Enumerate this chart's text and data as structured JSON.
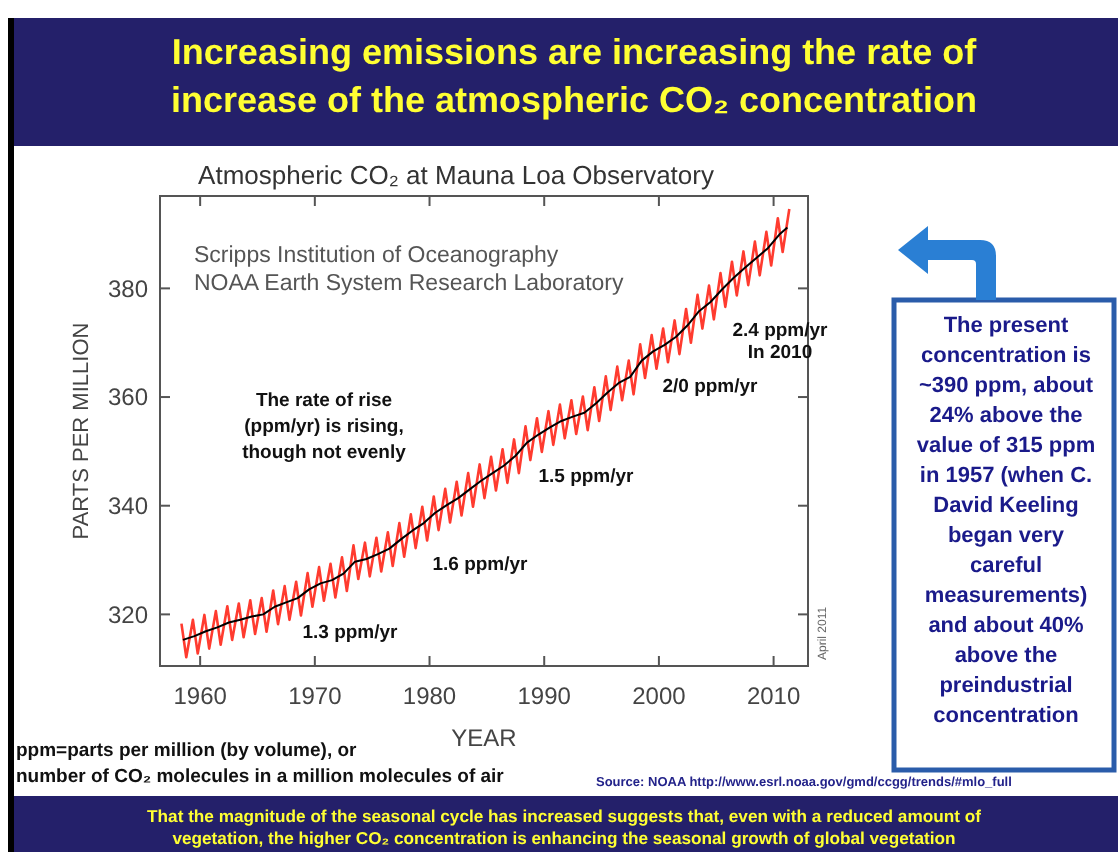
{
  "chart_data": {
    "type": "line",
    "title": "Increasing emissions are increasing the rate of increase of the atmospheric CO₂ concentration",
    "subtitle": "Atmospheric CO₂ at Mauna Loa Observatory",
    "xlabel": "YEAR",
    "ylabel": "PARTS PER MILLION",
    "xlim": [
      1956.5,
      2013
    ],
    "xticks": [
      1960,
      1970,
      1980,
      1990,
      2000,
      2010
    ],
    "ylim": [
      310.5,
      397
    ],
    "yticks": [
      320,
      340,
      360,
      380
    ],
    "grid": false,
    "series": [
      {
        "color": "#ff3b2f",
        "x": [
          1958.37,
          1958.79,
          1959.37,
          1959.79,
          1960.37,
          1960.79,
          1961.37,
          1961.79,
          1962.37,
          1962.79,
          1963.37,
          1963.79,
          1964.37,
          1964.79,
          1965.37,
          1965.79,
          1966.37,
          1966.79,
          1967.37,
          1967.79,
          1968.37,
          1968.79,
          1969.37,
          1969.79,
          1970.37,
          1970.79,
          1971.37,
          1971.79,
          1972.37,
          1972.79,
          1973.37,
          1973.79,
          1974.37,
          1974.79,
          1975.37,
          1975.79,
          1976.37,
          1976.79,
          1977.37,
          1977.79,
          1978.37,
          1978.79,
          1979.37,
          1979.79,
          1980.37,
          1980.79,
          1981.37,
          1981.79,
          1982.37,
          1982.79,
          1983.37,
          1983.79,
          1984.37,
          1984.79,
          1985.37,
          1985.79,
          1986.37,
          1986.79,
          1987.37,
          1987.79,
          1988.37,
          1988.79,
          1989.37,
          1989.79,
          1990.37,
          1990.79,
          1991.37,
          1991.79,
          1992.37,
          1992.79,
          1993.37,
          1993.79,
          1994.37,
          1994.79,
          1995.37,
          1995.79,
          1996.37,
          1996.79,
          1997.37,
          1997.79,
          1998.37,
          1998.79,
          1999.37,
          1999.79,
          2000.37,
          2000.79,
          2001.37,
          2001.79,
          2002.37,
          2002.79,
          2003.37,
          2003.79,
          2004.37,
          2004.79,
          2005.37,
          2005.79,
          2006.37,
          2006.79,
          2007.37,
          2007.79,
          2008.37,
          2008.79,
          2009.37,
          2009.79,
          2010.37,
          2010.79,
          2011.37
        ],
        "values": [
          318.3,
          312.1,
          319.0,
          312.8,
          319.9,
          313.7,
          320.6,
          314.4,
          321.5,
          315.3,
          322.0,
          315.8,
          322.6,
          316.4,
          323.0,
          316.8,
          324.4,
          318.2,
          325.2,
          319.0,
          326.0,
          319.8,
          327.6,
          321.4,
          328.7,
          322.5,
          329.3,
          323.1,
          330.5,
          324.3,
          332.7,
          326.5,
          333.2,
          327.0,
          334.1,
          327.9,
          335.1,
          328.9,
          336.8,
          330.6,
          338.4,
          332.2,
          339.8,
          333.6,
          341.7,
          335.5,
          343.1,
          336.9,
          344.4,
          338.2,
          346.0,
          339.8,
          347.6,
          341.4,
          349.0,
          342.8,
          350.4,
          344.2,
          352.2,
          346.0,
          354.6,
          348.4,
          356.1,
          349.9,
          357.4,
          351.2,
          358.6,
          352.4,
          359.4,
          353.2,
          360.1,
          353.9,
          361.8,
          355.6,
          363.8,
          357.6,
          365.6,
          359.4,
          366.7,
          360.5,
          369.7,
          363.5,
          371.4,
          365.2,
          372.6,
          366.4,
          374.1,
          367.9,
          376.2,
          370.0,
          378.8,
          372.6,
          380.5,
          374.3,
          382.8,
          376.6,
          384.9,
          378.7,
          386.8,
          380.6,
          388.6,
          382.4,
          390.4,
          384.2,
          392.9,
          386.7,
          394.6
        ]
      },
      {
        "color": "#000000",
        "x": [
          1958.5,
          1959.5,
          1960.5,
          1961.5,
          1962.5,
          1963.5,
          1964.5,
          1965.5,
          1966.5,
          1967.5,
          1968.5,
          1969.5,
          1970.5,
          1971.5,
          1972.5,
          1973.5,
          1974.5,
          1975.5,
          1976.5,
          1977.5,
          1978.5,
          1979.5,
          1980.5,
          1981.5,
          1982.5,
          1983.5,
          1984.5,
          1985.5,
          1986.5,
          1987.5,
          1988.5,
          1989.5,
          1990.5,
          1991.5,
          1992.5,
          1993.5,
          1994.5,
          1995.5,
          1996.5,
          1997.5,
          1998.5,
          1999.5,
          2000.5,
          2001.5,
          2002.5,
          2003.5,
          2004.5,
          2005.5,
          2006.5,
          2007.5,
          2008.5,
          2009.5,
          2010.5,
          2011.2
        ],
        "values": [
          315.3,
          316.0,
          316.9,
          317.6,
          318.5,
          319.0,
          319.6,
          320.0,
          321.4,
          322.2,
          323.0,
          324.6,
          325.7,
          326.3,
          327.5,
          329.7,
          330.2,
          331.1,
          332.1,
          333.8,
          335.4,
          336.8,
          338.7,
          340.1,
          341.4,
          343.0,
          344.6,
          346.0,
          347.4,
          349.2,
          351.6,
          353.1,
          354.4,
          355.6,
          356.4,
          357.1,
          358.8,
          360.8,
          362.6,
          363.7,
          366.7,
          368.4,
          369.6,
          371.1,
          373.2,
          375.8,
          377.5,
          379.8,
          381.9,
          383.8,
          385.6,
          387.4,
          389.9,
          391.2
        ]
      }
    ],
    "annotations": [
      "Scripps Institution of Oceanography",
      "NOAA Earth System Research Laboratory",
      "The rate of rise (ppm/yr) is rising, though not evenly",
      "1.3 ppm/yr",
      "1.6 ppm/yr",
      "1.5 ppm/yr",
      "2/0 ppm/yr",
      "2.4 ppm/yr In 2010",
      "April 2011",
      "ppm=parts per million (by volume), or",
      "number of CO₂ molecules in a million molecules of air",
      "Source: NOAA http://www.esrl.noaa.gov/gmd/ccgg/trends/#mlo_full",
      "The present concentration is ~390 ppm, about 24% above the value of 315 ppm in 1957 (when C. David Keeling began very careful measurements) and about 40% above the preindustrial concentration",
      "That the magnitude of the seasonal cycle has increased suggests that, even with a reduced amount of vegetation, the higher CO₂ concentration is enhancing the seasonal growth of global vegetation"
    ]
  }
}
